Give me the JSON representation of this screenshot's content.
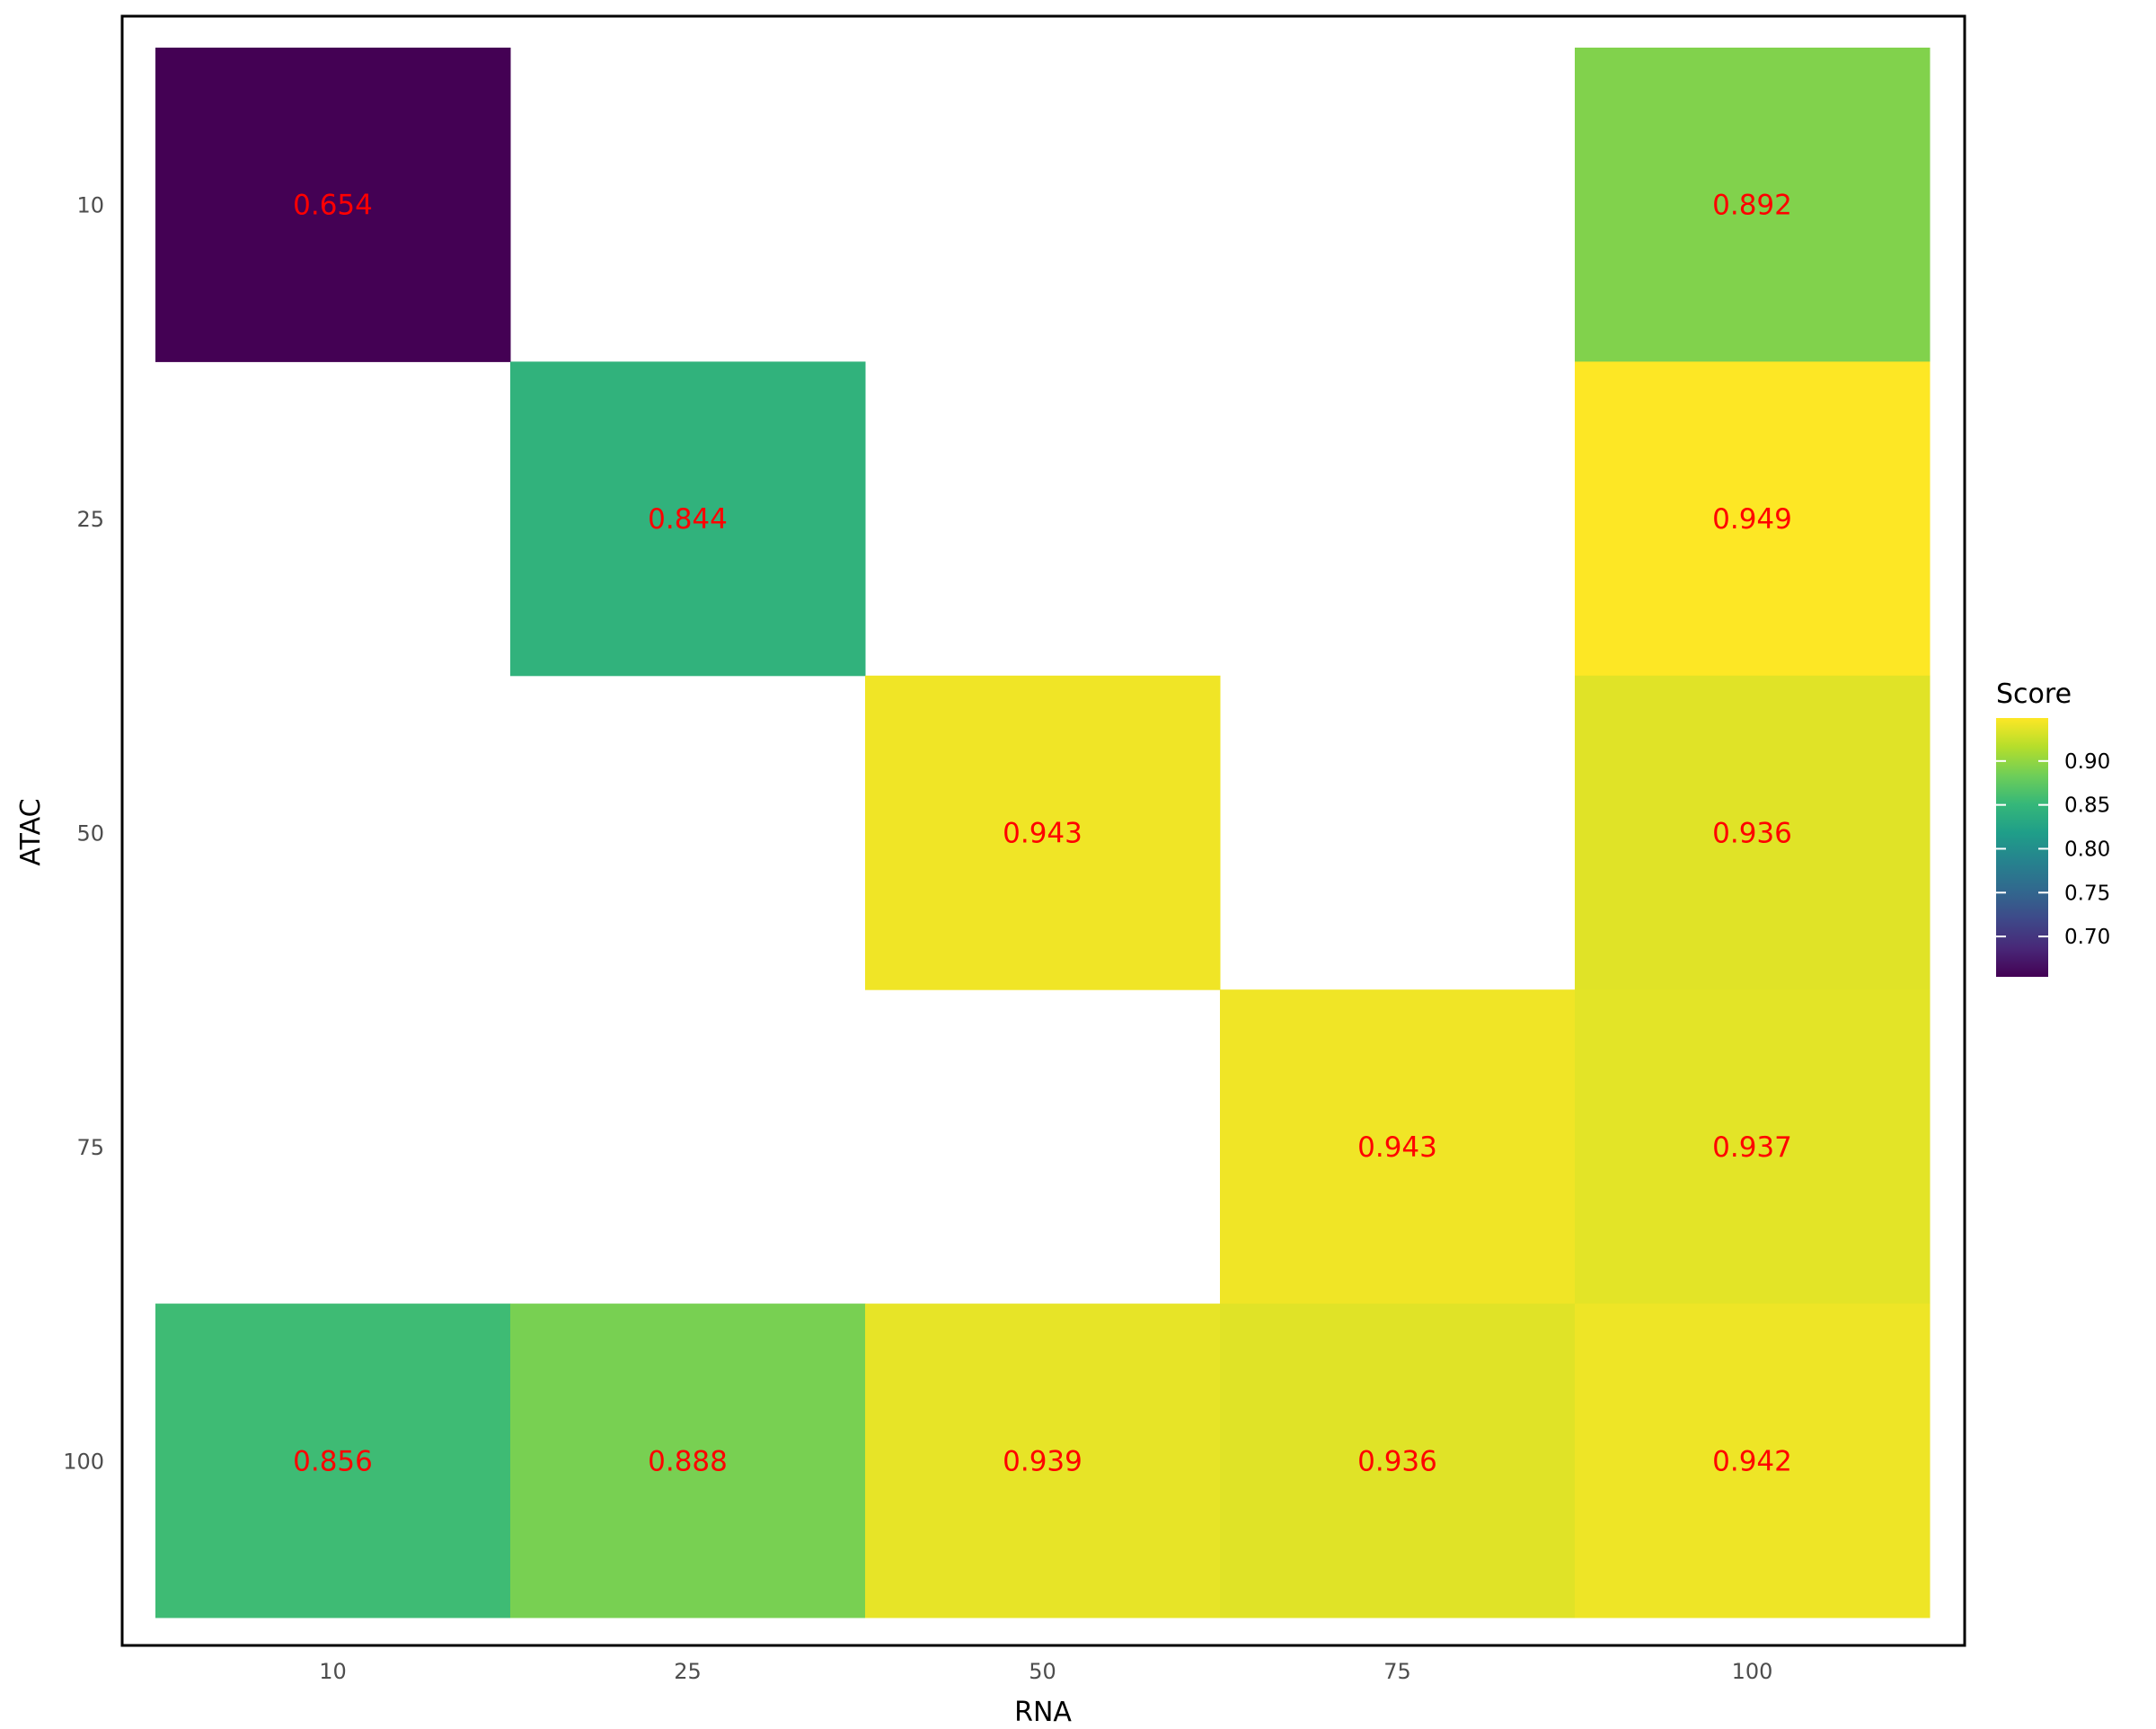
{
  "chart_data": {
    "type": "heatmap",
    "title": "",
    "xlabel": "RNA",
    "ylabel": "ATAC",
    "x_categories": [
      "10",
      "25",
      "50",
      "75",
      "100"
    ],
    "y_categories": [
      "10",
      "25",
      "50",
      "75",
      "100"
    ],
    "cells": [
      {
        "x": "10",
        "y": "10",
        "value": 0.654,
        "label": "0.654"
      },
      {
        "x": "100",
        "y": "10",
        "value": 0.892,
        "label": "0.892"
      },
      {
        "x": "25",
        "y": "25",
        "value": 0.844,
        "label": "0.844"
      },
      {
        "x": "100",
        "y": "25",
        "value": 0.949,
        "label": "0.949"
      },
      {
        "x": "50",
        "y": "50",
        "value": 0.943,
        "label": "0.943"
      },
      {
        "x": "100",
        "y": "50",
        "value": 0.936,
        "label": "0.936"
      },
      {
        "x": "75",
        "y": "75",
        "value": 0.943,
        "label": "0.943"
      },
      {
        "x": "100",
        "y": "75",
        "value": 0.937,
        "label": "0.937"
      },
      {
        "x": "10",
        "y": "100",
        "value": 0.856,
        "label": "0.856"
      },
      {
        "x": "25",
        "y": "100",
        "value": 0.888,
        "label": "0.888"
      },
      {
        "x": "50",
        "y": "100",
        "value": 0.939,
        "label": "0.939"
      },
      {
        "x": "75",
        "y": "100",
        "value": 0.936,
        "label": "0.936"
      },
      {
        "x": "100",
        "y": "100",
        "value": 0.942,
        "label": "0.942"
      }
    ],
    "colorscale": "viridis",
    "value_range": [
      0.654,
      0.949
    ],
    "label_color": "#ff0000",
    "legend": {
      "title": "Score",
      "ticks": [
        0.7,
        0.75,
        0.8,
        0.85,
        0.9
      ],
      "tick_labels": [
        "0.70",
        "0.75",
        "0.80",
        "0.85",
        "0.90"
      ],
      "placement": "right"
    }
  }
}
